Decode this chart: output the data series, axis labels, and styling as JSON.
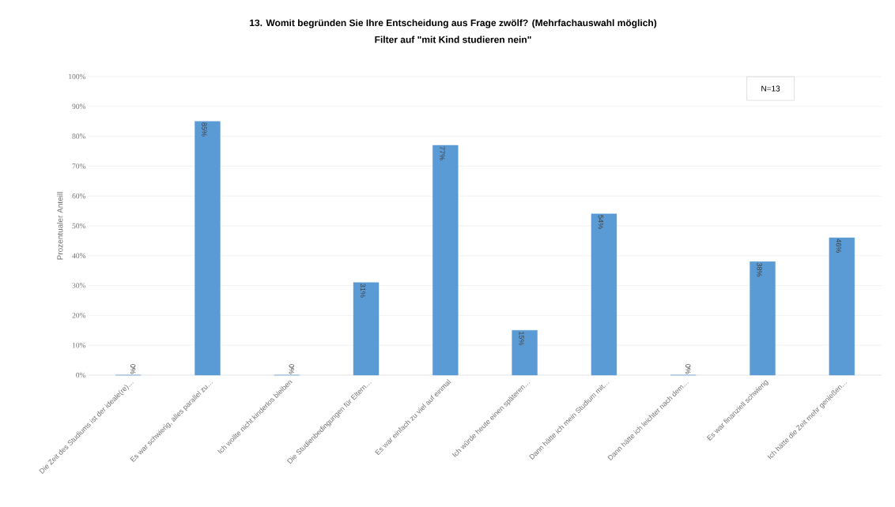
{
  "chart_data": {
    "type": "bar",
    "title": "13. Womit begründen Sie Ihre Entscheidung aus Frage zwölf? (Mehrfachauswahl möglich)",
    "subtitle": "Filter auf \"mit Kind studieren nein\"",
    "ylabel": "Prozentualer Anteill",
    "categories": [
      "Die Zeit des Studiums ist der ideale(re)…",
      "Es war schwierig, alles parallel zu…",
      "Ich wollte nicht kinderlos bleiben",
      "Die Studienbedingungen für Eltern…",
      "Es war einfach zu viel auf einmal",
      "Ich würde heute einen späteren…",
      "Dann hätte ich mein Studium mit…",
      "Dann hätte ich leichter nach dem…",
      "Es war finanziell schwierig",
      "Ich hätte die Zeit mehr genießen…"
    ],
    "values": [
      0,
      85,
      0,
      31,
      77,
      15,
      54,
      0,
      38,
      46
    ],
    "value_labels": [
      "0%",
      "85%",
      "0%",
      "31%",
      "77%",
      "15%",
      "54%",
      "0%",
      "38%",
      "46%"
    ],
    "color": "#5b9bd5",
    "ylim": [
      0,
      100
    ],
    "yticks": [
      {
        "value": 0,
        "label": "0%"
      },
      {
        "value": 10,
        "label": "10%"
      },
      {
        "value": 20,
        "label": "20%"
      },
      {
        "value": 30,
        "label": "30%"
      },
      {
        "value": 40,
        "label": "40%"
      },
      {
        "value": 50,
        "label": "50%"
      },
      {
        "value": 60,
        "label": "60%"
      },
      {
        "value": 70,
        "label": "70%"
      },
      {
        "value": 80,
        "label": "80%"
      },
      {
        "value": 90,
        "label": "90%"
      },
      {
        "value": 100,
        "label": "100%"
      }
    ],
    "grid": "y",
    "annotations": [
      "N=13"
    ]
  }
}
